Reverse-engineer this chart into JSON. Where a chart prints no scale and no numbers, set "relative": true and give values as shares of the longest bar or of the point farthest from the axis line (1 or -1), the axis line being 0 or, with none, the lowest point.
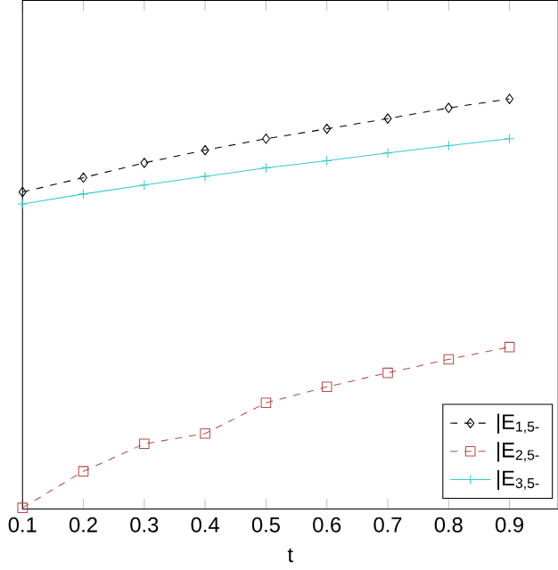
{
  "chart_data": {
    "type": "line",
    "relative": true,
    "xlabel": "t",
    "x": [
      0.1,
      0.2,
      0.3,
      0.4,
      0.5,
      0.6,
      0.7,
      0.8,
      0.9
    ],
    "xlim": [
      0.1,
      0.98
    ],
    "xticks": [
      0.1,
      0.2,
      0.3,
      0.4,
      0.5,
      0.6,
      0.7,
      0.8,
      0.9
    ],
    "legend": "bottom right",
    "series": [
      {
        "name": "|E$_{1,5-}$",
        "color": "#000000",
        "marker": "diamond",
        "line_style": "dashed",
        "values": [
          0.773,
          0.808,
          0.844,
          0.875,
          0.903,
          0.927,
          0.952,
          0.978,
          1.0
        ]
      },
      {
        "name": "|E$_{2,5-}$",
        "color": "#b84a4a",
        "marker": "square",
        "line_style": "dashed",
        "values": [
          0.003,
          0.092,
          0.159,
          0.184,
          0.259,
          0.298,
          0.332,
          0.365,
          0.395
        ]
      },
      {
        "name": "|E$_{3,5-}$",
        "color": "#33cccc",
        "marker": "cross",
        "line_style": "solid",
        "values": [
          0.744,
          0.768,
          0.79,
          0.811,
          0.832,
          0.849,
          0.868,
          0.886,
          0.903
        ]
      }
    ]
  }
}
